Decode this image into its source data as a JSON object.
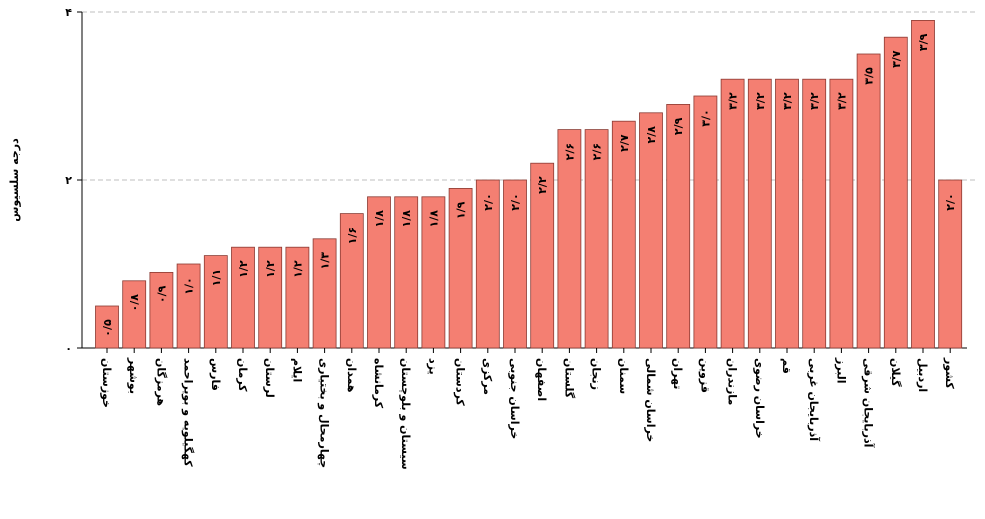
{
  "chart_data": {
    "type": "bar",
    "title": "",
    "xlabel": "",
    "ylabel": "درجه سلسیوس",
    "ylim": [
      0,
      4
    ],
    "yticks": [
      {
        "value": 0,
        "label": "۰"
      },
      {
        "value": 2,
        "label": "۲"
      },
      {
        "value": 4,
        "label": "۴"
      }
    ],
    "grid": true,
    "legend": "none",
    "bar_color": "#f47f72",
    "bar_edge_color": "#8a3a32",
    "grid_color": "#bfbfbf",
    "categories": [
      "خوزستان",
      "بوشهر",
      "هرمزگان",
      "کهگیلویه و بویراحمد",
      "فارس",
      "کرمان",
      "لرستان",
      "ایلام",
      "چهارمحال و بختیاری",
      "همدان",
      "کرمانشاه",
      "سیستان و بلوچستان",
      "یزد",
      "کردستان",
      "مرکزی",
      "خراسان جنوبی",
      "اصفهان",
      "گلستان",
      "زنجان",
      "سمنان",
      "خراسان شمالی",
      "تهران",
      "قزوین",
      "مازندران",
      "خراسان رضوی",
      "قم",
      "آذربایجان غربی",
      "البرز",
      "آذربایجان شرقی",
      "گیلان",
      "اردبیل",
      "کشور"
    ],
    "values": [
      0.5,
      0.8,
      0.9,
      1.0,
      1.1,
      1.2,
      1.2,
      1.2,
      1.3,
      1.6,
      1.8,
      1.8,
      1.8,
      1.9,
      2.0,
      2.0,
      2.2,
      2.6,
      2.6,
      2.7,
      2.8,
      2.9,
      3.0,
      3.2,
      3.2,
      3.2,
      3.2,
      3.2,
      3.5,
      3.7,
      3.9,
      2.0
    ],
    "value_labels": [
      "۰/۵",
      "۰/۸",
      "۰/۹",
      "۱/۰",
      "۱/۱",
      "۱/۲",
      "۱/۲",
      "۱/۲",
      "۱/۳",
      "۱/۶",
      "۱/۸",
      "۱/۸",
      "۱/۸",
      "۱/۹",
      "۲/۰",
      "۲/۰",
      "۲/۲",
      "۲/۶",
      "۲/۶",
      "۲/۷",
      "۲/۸",
      "۲/۹",
      "۳/۰",
      "۳/۲",
      "۳/۲",
      "۳/۲",
      "۳/۲",
      "۳/۲",
      "۳/۵",
      "۳/۷",
      "۳/۹",
      "۲/۰"
    ]
  }
}
